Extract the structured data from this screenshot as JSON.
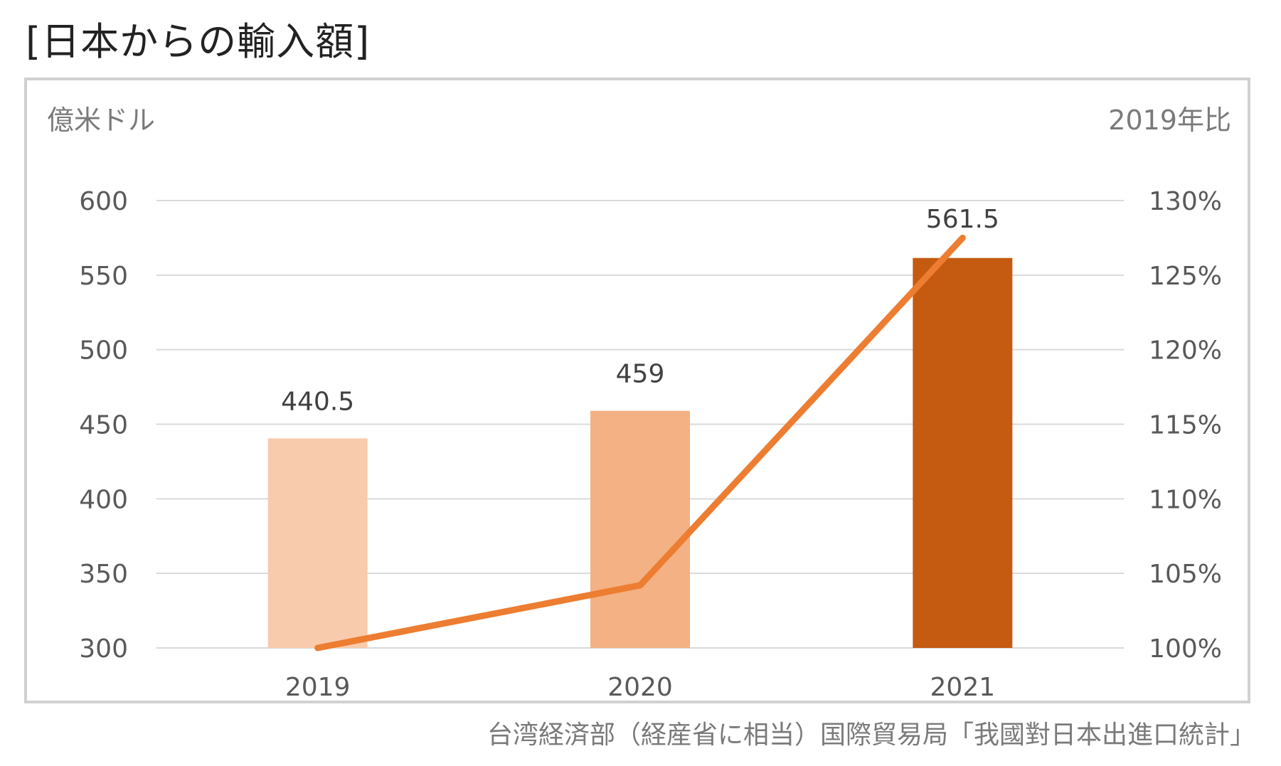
{
  "title": "[日本からの輸入額]",
  "unit_left": "億米ドル",
  "unit_right": "2019年比",
  "source": "台湾経済部（経産省に相当）国際貿易局「我國對日本出進口統計」",
  "chart_data": {
    "type": "bar",
    "categories": [
      "2019",
      "2020",
      "2021"
    ],
    "series": [
      {
        "values": [
          440.5,
          459,
          561.5
        ],
        "data_labels": [
          "440.5",
          "459",
          "561.5"
        ],
        "colors": [
          "#f8cbad",
          "#f4b183",
          "#c55a11"
        ],
        "axis": "left"
      },
      {
        "type": "line",
        "values": [
          100,
          104.2,
          127.5
        ],
        "color": "#ed7d31",
        "axis": "right"
      }
    ],
    "ylim": [
      300,
      600
    ],
    "yticks": [
      "300",
      "350",
      "400",
      "450",
      "500",
      "550",
      "600"
    ],
    "y2lim": [
      100,
      130
    ],
    "y2ticks": [
      "100%",
      "105%",
      "110%",
      "115%",
      "120%",
      "125%",
      "130%"
    ],
    "grid": true,
    "legend": "none"
  }
}
